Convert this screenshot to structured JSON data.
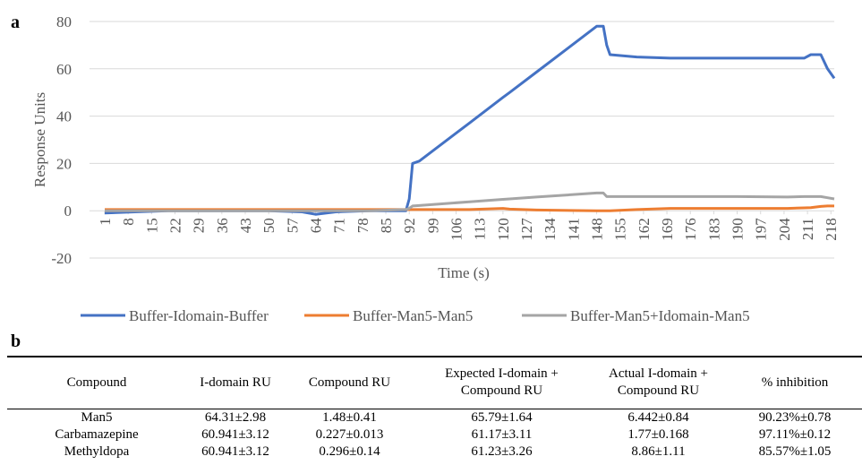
{
  "panel_a": {
    "label": "a"
  },
  "chart_data": {
    "type": "line",
    "y_label": "Response Units",
    "x_label": "Time (s)",
    "x": [
      1,
      10,
      20,
      30,
      40,
      50,
      60,
      64,
      70,
      80,
      91,
      92,
      93,
      95,
      110,
      120,
      122,
      130,
      148,
      150,
      151,
      152,
      160,
      170,
      190,
      205,
      210,
      212,
      215,
      217,
      219
    ],
    "xlim": [
      1,
      219
    ],
    "xticks": [
      1,
      8,
      15,
      22,
      29,
      36,
      43,
      50,
      57,
      64,
      71,
      78,
      85,
      92,
      99,
      106,
      113,
      120,
      127,
      134,
      141,
      148,
      155,
      162,
      169,
      176,
      183,
      190,
      197,
      204,
      211,
      218
    ],
    "ylim": [
      -20,
      80
    ],
    "yticks": [
      -20,
      0,
      20,
      40,
      60,
      80
    ],
    "grid": true,
    "legend": "bottom",
    "series": [
      {
        "name": "Buffer-Idomain-Buffer",
        "color": "#4472c4",
        "values": [
          -1,
          -0.5,
          0,
          0,
          0,
          0,
          -0.5,
          -1.5,
          -0.5,
          0,
          0,
          5,
          20,
          21,
          37.1,
          47.9,
          50,
          58.6,
          78,
          78,
          70,
          66,
          65,
          64.5,
          64.5,
          64.5,
          64.5,
          66,
          66,
          60,
          56
        ]
      },
      {
        "name": "Buffer-Man5-Man5",
        "color": "#ed7d31",
        "values": [
          0.5,
          0.5,
          0.5,
          0.5,
          0.5,
          0.5,
          0.5,
          0.5,
          0.5,
          0.5,
          0.5,
          0.5,
          0.5,
          0.5,
          0.5,
          1,
          0.7,
          0.3,
          0,
          0,
          0,
          0,
          0.5,
          1,
          1,
          1,
          1.2,
          1.3,
          1.8,
          2,
          2
        ]
      },
      {
        "name": "Buffer-Man5+Idomain-Man5",
        "color": "#a5a5a5",
        "values": [
          0,
          0,
          0,
          0,
          0,
          0,
          0,
          0,
          0,
          0,
          0.5,
          1,
          2,
          2.2,
          3.8,
          4.8,
          5,
          5.8,
          7.5,
          7.5,
          6,
          6,
          6,
          6,
          6,
          5.8,
          6,
          6,
          6,
          5.5,
          5
        ]
      }
    ]
  },
  "panel_b": {
    "label": "b"
  },
  "table": {
    "header": [
      "Compound",
      "I-domain RU",
      "Compound RU",
      "Expected I-domain + Compound RU",
      "Actual I-domain + Compound RU",
      "% inhibition"
    ],
    "rows": [
      [
        "Man5",
        "64.31±2.98",
        "1.48±0.41",
        "65.79±1.64",
        "6.442±0.84",
        "90.23%±0.78"
      ],
      [
        "Carbamazepine",
        "60.941±3.12",
        "0.227±0.013",
        "61.17±3.11",
        "1.77±0.168",
        "97.11%±0.12"
      ],
      [
        "Methyldopa",
        "60.941±3.12",
        "0.296±0.14",
        "61.23±3.26",
        "8.86±1.11",
        "85.57%±1.05"
      ]
    ]
  }
}
